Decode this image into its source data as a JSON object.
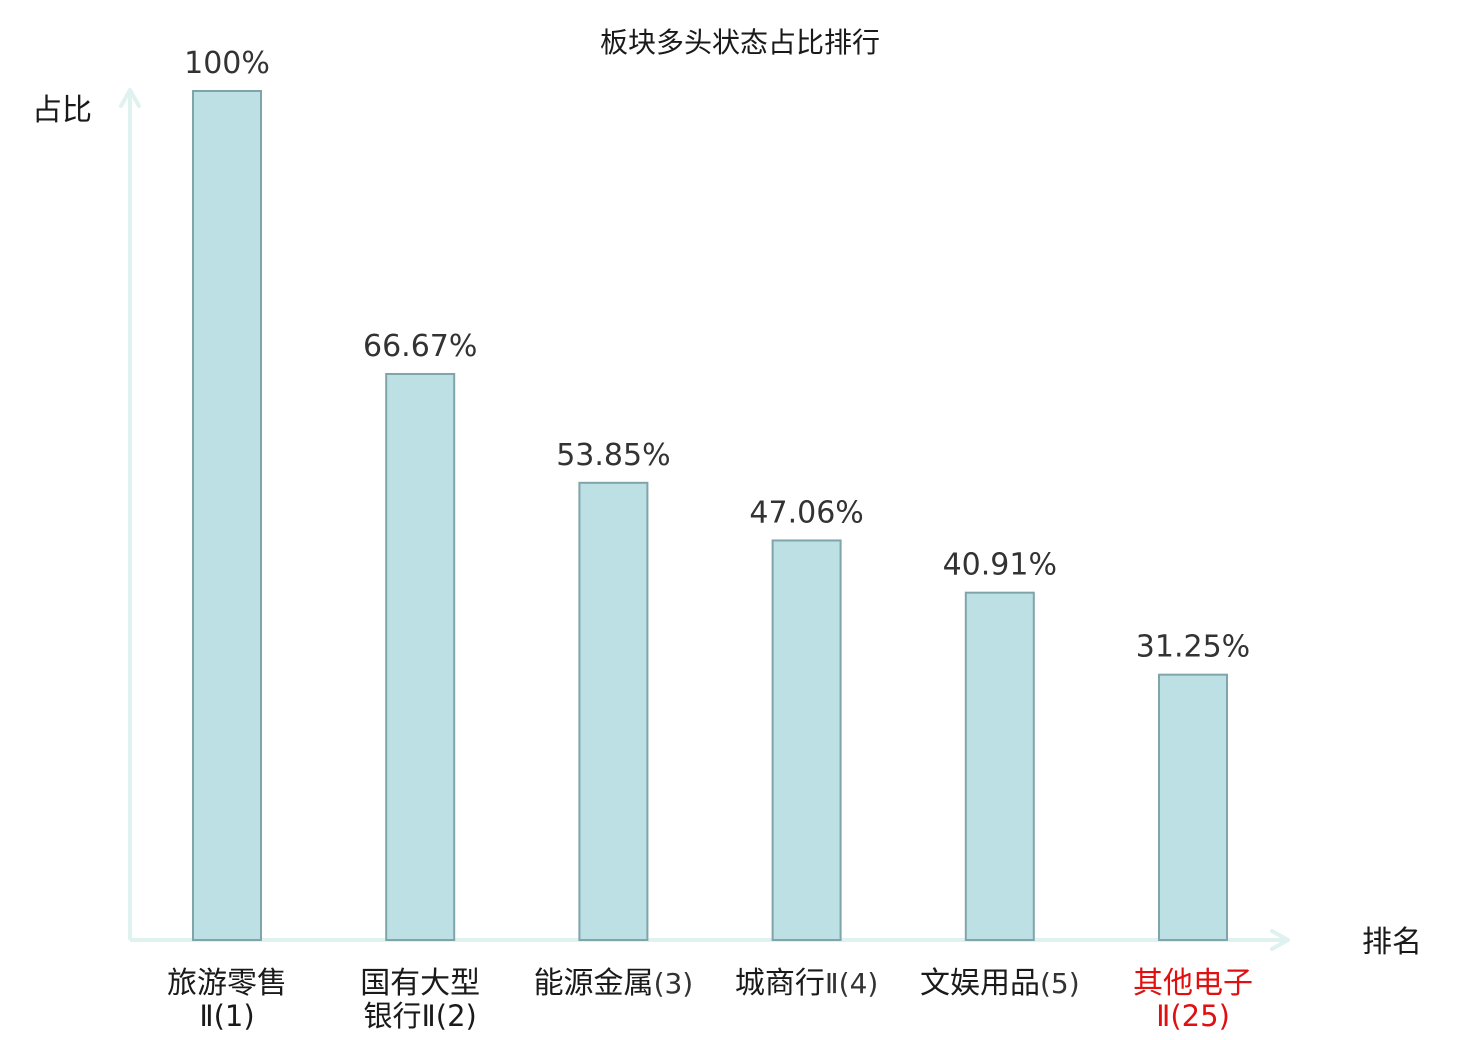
{
  "chart_data": {
    "type": "bar",
    "title": "板块多头状态占比排行",
    "ylabel": "占比",
    "xlabel": "排名",
    "ylim": [
      0,
      100
    ],
    "grid": false,
    "categories": [
      {
        "name": "旅游零售",
        "rank": "Ⅱ(1)",
        "highlight": false
      },
      {
        "name": "国有大型",
        "rank": "银行Ⅱ(2)",
        "highlight": false
      },
      {
        "name": "能源金属",
        "rank": "(3)",
        "highlight": false
      },
      {
        "name": "城商行",
        "rank": "Ⅱ(4)",
        "highlight": false
      },
      {
        "name": "文娱用品",
        "rank": "(5)",
        "highlight": false
      },
      {
        "name": "其他电子",
        "rank": "Ⅱ(25)",
        "highlight": true
      }
    ],
    "values": [
      100,
      66.67,
      53.85,
      47.06,
      40.91,
      31.25
    ],
    "value_labels": [
      "100%",
      "66.67%",
      "53.85%",
      "47.06%",
      "40.91%",
      "31.25%"
    ]
  },
  "colors": {
    "bar_fill": "#bce0e3",
    "bar_stroke": "#7ea5a9",
    "axis": "#dff2ef",
    "text": "#333333",
    "label_text": "#1a1a1a",
    "highlight": "#e01010"
  }
}
